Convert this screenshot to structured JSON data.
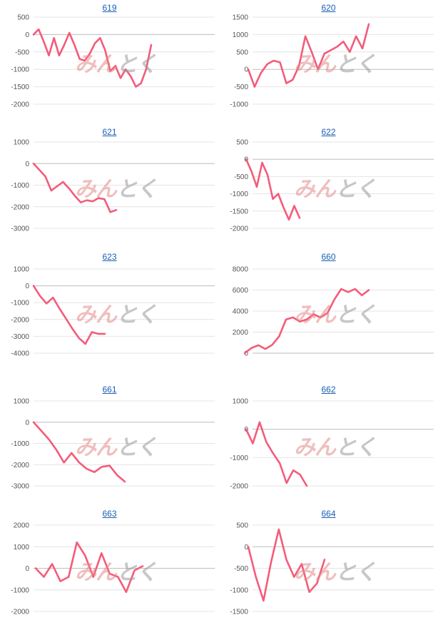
{
  "chart_data": [
    {
      "type": "line",
      "title": "619",
      "ylim": [
        -2000,
        500
      ],
      "yticks": [
        500,
        0,
        -500,
        -1000,
        -1500,
        -2000
      ],
      "series": [
        {
          "values": [
            0,
            150,
            -200,
            -600,
            -100,
            -600,
            -300,
            50,
            -300,
            -700,
            -750,
            -550,
            -250,
            -100,
            -450,
            -1050,
            -900,
            -1250,
            -1000,
            -1200,
            -1500,
            -1400,
            -1000,
            -300
          ]
        }
      ]
    },
    {
      "type": "line",
      "title": "620",
      "ylim": [
        -1000,
        1500
      ],
      "yticks": [
        1500,
        1000,
        500,
        0,
        -500,
        -1000
      ],
      "series": [
        {
          "values": [
            0,
            -500,
            -100,
            150,
            250,
            200,
            -400,
            -300,
            100,
            950,
            500,
            0,
            450,
            550,
            650,
            800,
            500,
            950,
            600,
            1300
          ]
        }
      ]
    },
    {
      "type": "line",
      "title": "621",
      "ylim": [
        -3000,
        1000
      ],
      "yticks": [
        1000,
        0,
        -1000,
        -2000,
        -3000
      ],
      "series": [
        {
          "values": [
            0,
            -300,
            -600,
            -1250,
            -1050,
            -850,
            -1150,
            -1500,
            -1800,
            -1700,
            -1750,
            -1600,
            -1650,
            -2250,
            -2150
          ]
        }
      ]
    },
    {
      "type": "line",
      "title": "622",
      "ylim": [
        -2000,
        500
      ],
      "yticks": [
        500,
        0,
        -500,
        -1000,
        -1500,
        -2000
      ],
      "series": [
        {
          "values": [
            0,
            -350,
            -800,
            -100,
            -450,
            -1150,
            -1000,
            -1400,
            -1750,
            -1350,
            -1700
          ]
        }
      ]
    },
    {
      "type": "line",
      "title": "623",
      "ylim": [
        -4000,
        1000
      ],
      "yticks": [
        1000,
        0,
        -1000,
        -2000,
        -3000,
        -4000
      ],
      "series": [
        {
          "values": [
            0,
            -600,
            -1050,
            -700,
            -1350,
            -1950,
            -2550,
            -3100,
            -3450,
            -2750,
            -2850,
            -2850
          ]
        }
      ]
    },
    {
      "type": "line",
      "title": "660",
      "ylim": [
        0,
        8000
      ],
      "yticks": [
        8000,
        6000,
        4000,
        2000,
        0
      ],
      "series": [
        {
          "values": [
            0,
            500,
            750,
            400,
            800,
            1600,
            3200,
            3400,
            3000,
            3200,
            3700,
            3400,
            3800,
            5100,
            6100,
            5800,
            6100,
            5500,
            6000
          ]
        }
      ]
    },
    {
      "type": "line",
      "title": "661",
      "ylim": [
        -3000,
        1000
      ],
      "yticks": [
        1000,
        0,
        -1000,
        -2000,
        -3000
      ],
      "series": [
        {
          "values": [
            0,
            -400,
            -800,
            -1300,
            -1900,
            -1450,
            -1900,
            -2200,
            -2350,
            -2100,
            -2050,
            -2500,
            -2800
          ]
        }
      ]
    },
    {
      "type": "line",
      "title": "662",
      "ylim": [
        -2000,
        1000
      ],
      "yticks": [
        1000,
        0,
        -1000,
        -2000
      ],
      "series": [
        {
          "values": [
            0,
            -500,
            250,
            -450,
            -850,
            -1200,
            -1900,
            -1450,
            -1600,
            -2000
          ]
        }
      ]
    },
    {
      "type": "line",
      "title": "663",
      "ylim": [
        -2000,
        2000
      ],
      "yticks": [
        2000,
        1000,
        0,
        -1000,
        -2000
      ],
      "series": [
        {
          "values": [
            0,
            -400,
            200,
            -600,
            -400,
            1200,
            600,
            -400,
            700,
            -250,
            -400,
            -1100,
            -100,
            100
          ]
        }
      ]
    },
    {
      "type": "line",
      "title": "664",
      "ylim": [
        -1500,
        500
      ],
      "yticks": [
        500,
        0,
        -500,
        -1000,
        -1500
      ],
      "series": [
        {
          "values": [
            0,
            -700,
            -1250,
            -350,
            400,
            -300,
            -700,
            -400,
            -1050,
            -850,
            -300
          ]
        }
      ]
    }
  ],
  "watermark": {
    "part_a": "みん",
    "part_b": "とく"
  },
  "colors": {
    "series": "#f45b7a",
    "title_link": "#1a5fb4",
    "grid": "#e4e4e4"
  }
}
